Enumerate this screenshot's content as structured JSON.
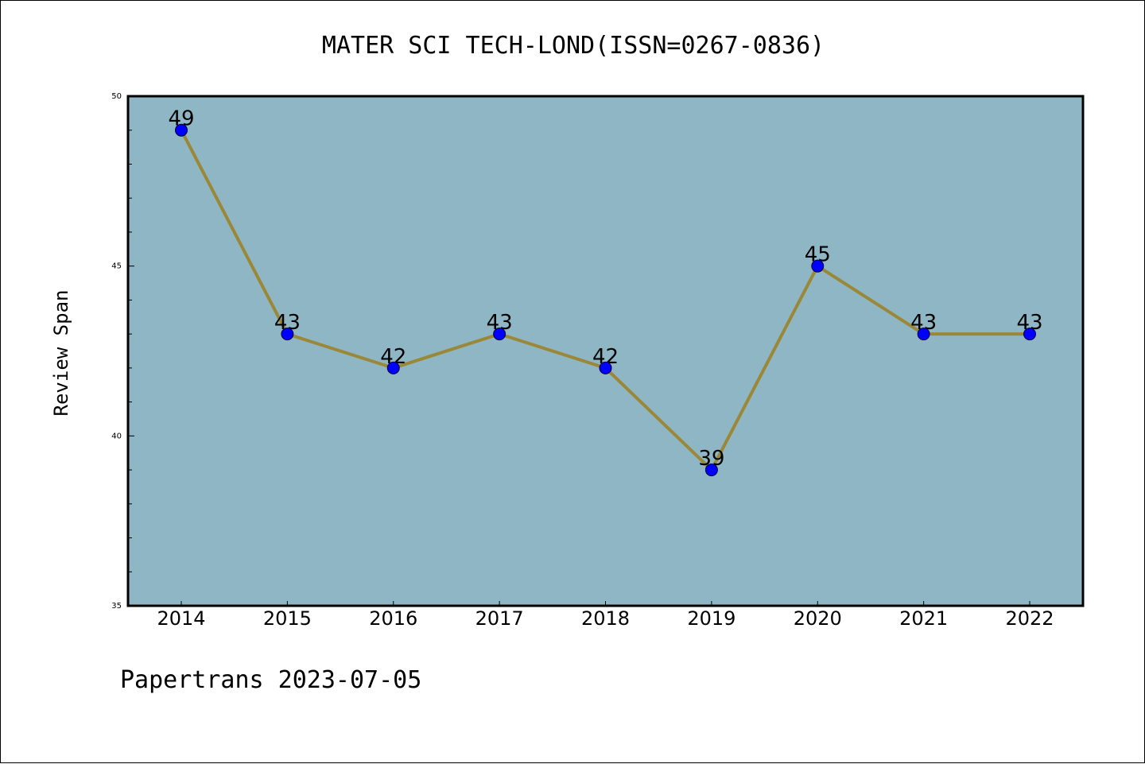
{
  "chart_data": {
    "type": "line",
    "title": "MATER SCI TECH-LOND(ISSN=0267-0836)",
    "ylabel": "Review Span",
    "xlabel": "",
    "categories": [
      "2014",
      "2015",
      "2016",
      "2017",
      "2018",
      "2019",
      "2020",
      "2021",
      "2022"
    ],
    "values": [
      49,
      43,
      42,
      43,
      42,
      39,
      45,
      43,
      43
    ],
    "data_labels": [
      "49",
      "43",
      "42",
      "43",
      "42",
      "39",
      "45",
      "43",
      "43"
    ],
    "ylim": [
      35,
      50
    ],
    "y_major_ticks": [
      35,
      40,
      45,
      50
    ],
    "y_minor_tick_step": 1,
    "grid": false,
    "legend": "none",
    "colors": {
      "plot_background": "#8fb6c4",
      "line": "#9a8838",
      "marker_fill": "#0000ff",
      "marker_edge": "#000033",
      "axes": "#000000"
    }
  },
  "footer": {
    "text": "Papertrans 2023-07-05"
  }
}
